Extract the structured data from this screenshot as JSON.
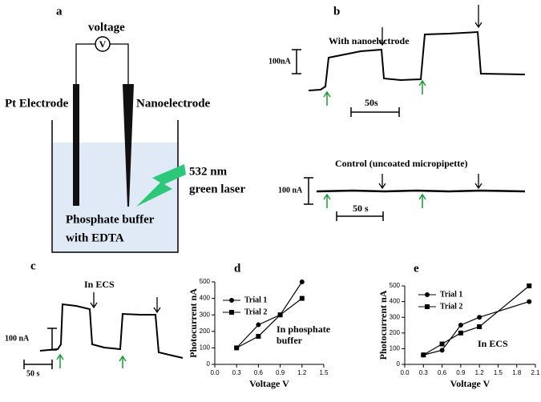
{
  "panel_a": {
    "label": "a",
    "voltage": "voltage",
    "meter": "V",
    "pt_electrode": "Pt Electrode",
    "nanoelectrode": "Nanoelectrode",
    "laser": [
      "532 nm",
      "green laser"
    ],
    "buffer": [
      "Phosphate buffer",
      "with EDTA"
    ]
  },
  "panel_b": {
    "label": "b",
    "top_title": "With nanoelectrode",
    "top_current_scale": "100nA",
    "top_time_scale": "50s",
    "bottom_title": "Control (uncoated micropipette)",
    "bottom_current_scale": "100 nA",
    "bottom_time_scale": "50 s"
  },
  "panel_c": {
    "label": "c",
    "title": "In ECS",
    "current_scale": "100 nA",
    "time_scale": "50 s"
  },
  "chart_data": [
    {
      "type": "line",
      "label": "d",
      "xlabel": "Voltage V",
      "ylabel": "Photocurrent nA",
      "annotation": [
        "In phosphate",
        "buffer"
      ],
      "x": [
        0.3,
        0.6,
        0.9,
        1.2
      ],
      "series": [
        {
          "name": "Trial 1",
          "color": "#000000",
          "marker": "circle",
          "values": [
            100,
            240,
            300,
            500
          ]
        },
        {
          "name": "Trial 2",
          "color": "#000000",
          "marker": "square",
          "values": [
            100,
            170,
            300,
            400
          ]
        }
      ],
      "xlim": [
        0,
        1.5
      ],
      "xticks": [
        {
          "value": 0,
          "label": "0.0"
        },
        0.3,
        0.6,
        0.9,
        1.2,
        1.5
      ],
      "ylim": [
        0,
        500
      ],
      "yticks": [
        0,
        100,
        200,
        300,
        400,
        500
      ],
      "legend": "upper-left"
    },
    {
      "type": "line",
      "label": "e",
      "xlabel": "Voltage V",
      "ylabel": "Photocurrent nA",
      "annotation": [
        "In ECS"
      ],
      "x": [
        0.3,
        0.6,
        0.9,
        1.2,
        2.0
      ],
      "series": [
        {
          "name": "Trial 1",
          "color": "#000000",
          "marker": "circle",
          "values": [
            60,
            90,
            250,
            300,
            400
          ]
        },
        {
          "name": "Trial 2",
          "color": "#000000",
          "marker": "square",
          "values": [
            60,
            130,
            200,
            240,
            500
          ]
        }
      ],
      "xlim": [
        0,
        2.1
      ],
      "xticks": [
        {
          "value": 0,
          "label": "0.0"
        },
        0.3,
        0.6,
        0.9,
        1.2,
        1.5,
        1.8,
        2.1
      ],
      "ylim": [
        0,
        500
      ],
      "yticks": [
        0,
        100,
        200,
        300,
        400,
        500
      ],
      "legend": "upper-left"
    }
  ]
}
